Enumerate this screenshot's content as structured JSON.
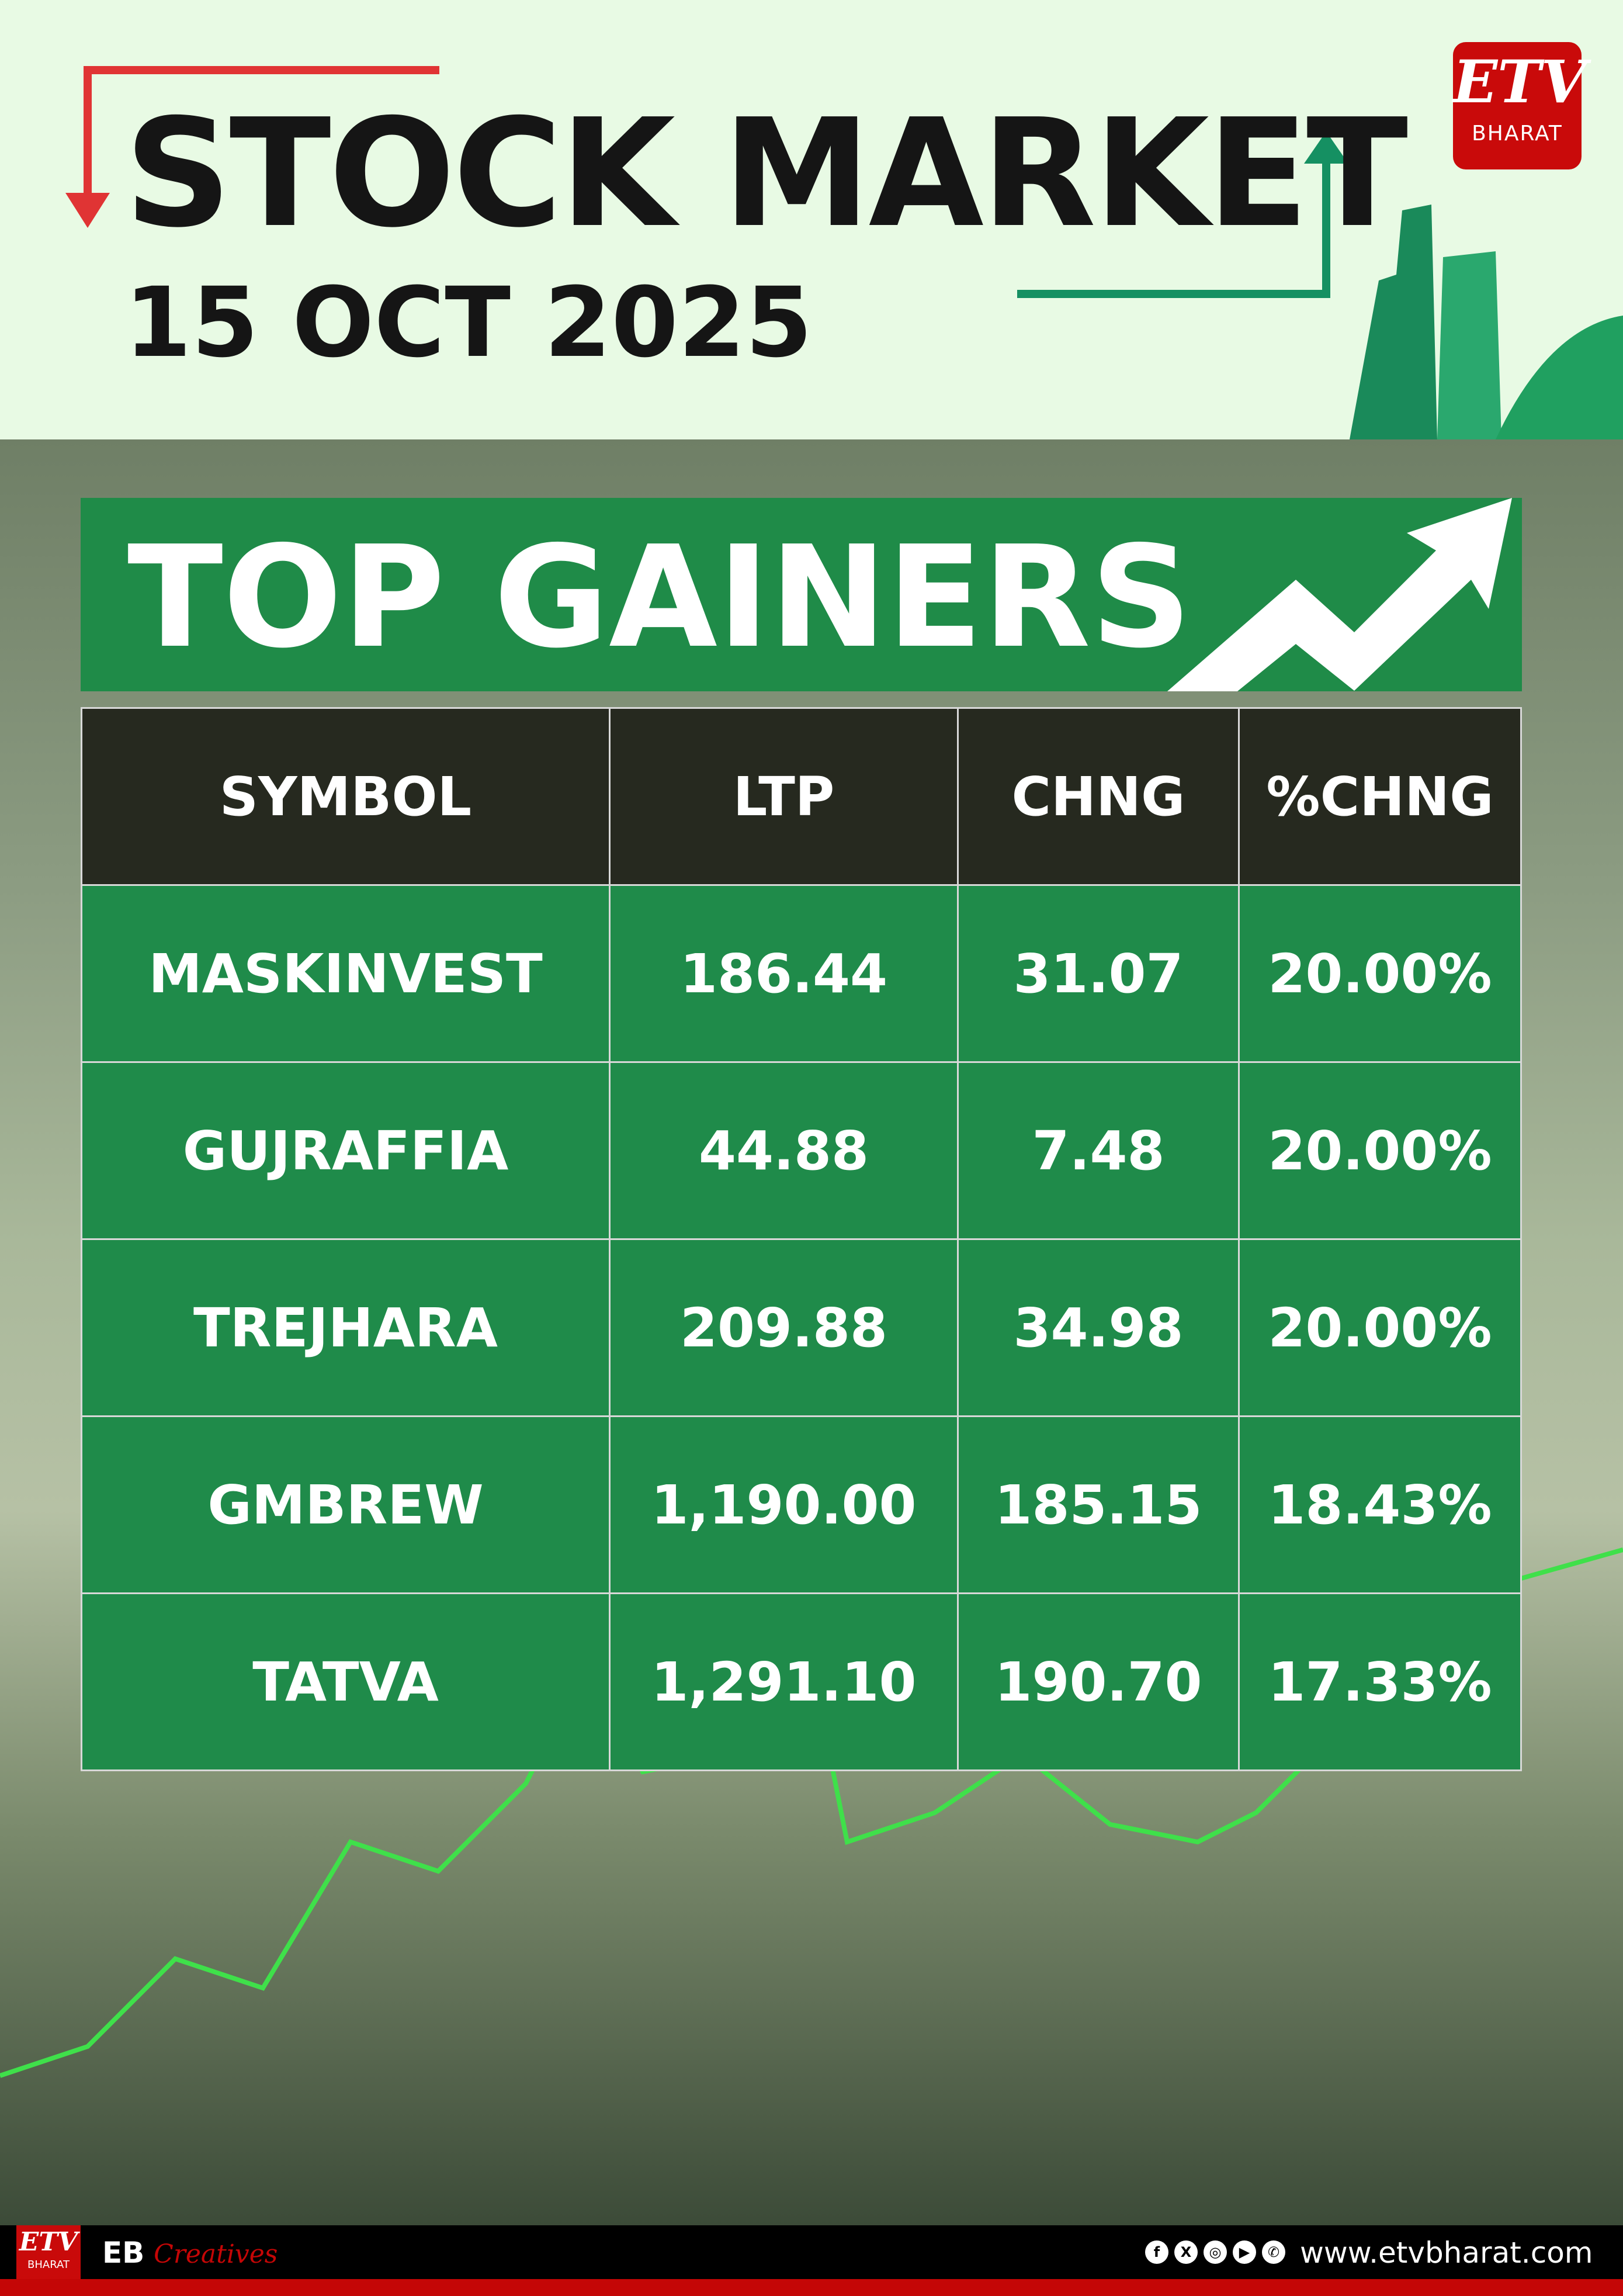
{
  "header": {
    "title": "STOCK MARKET",
    "date": "15 OCT 2025"
  },
  "logo": {
    "brand": "ETV",
    "sub": "BHARAT"
  },
  "banner": {
    "title": "TOP GAINERS"
  },
  "table": {
    "columns": [
      "SYMBOL",
      "LTP",
      "CHNG",
      "%CHNG"
    ],
    "rows": [
      [
        "MASKINVEST",
        "186.44",
        "31.07",
        "20.00%"
      ],
      [
        "GUJRAFFIA",
        "44.88",
        "7.48",
        "20.00%"
      ],
      [
        "TREJHARA",
        "209.88",
        "34.98",
        "20.00%"
      ],
      [
        "GMBREW",
        "1,190.00",
        "185.15",
        "18.43%"
      ],
      [
        "TATVA",
        "1,291.10",
        "190.70",
        "17.33%"
      ]
    ]
  },
  "footer": {
    "eb": "EB",
    "creatives": "Creatives",
    "url": "www.etvbharat.com",
    "social_icons": [
      "facebook-icon",
      "x-icon",
      "instagram-icon",
      "youtube-icon",
      "whatsapp-icon"
    ]
  },
  "colors": {
    "accent_green": "#1f8b48",
    "header_dark": "#26291f",
    "brand_red": "#c90a0a"
  }
}
